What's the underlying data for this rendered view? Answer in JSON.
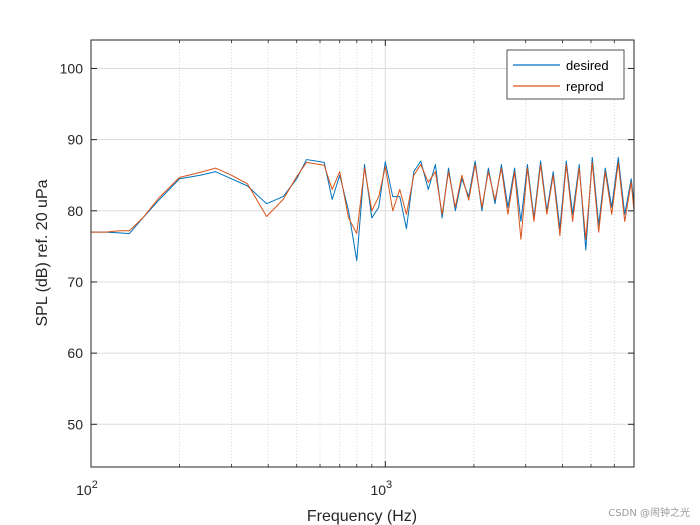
{
  "chart_data": {
    "type": "line",
    "xscale": "log",
    "xlim": [
      100,
      7000
    ],
    "ylim": [
      44,
      104
    ],
    "xlabel": "Frequency (Hz)",
    "ylabel": "SPL (dB) ref. 20 uPa",
    "y_ticks": [
      50,
      60,
      70,
      80,
      90,
      100
    ],
    "x_ticks": [
      {
        "value": 100,
        "base": "10",
        "exp": "2"
      },
      {
        "value": 1000,
        "base": "10",
        "exp": "3"
      }
    ],
    "grid": true,
    "legend_position": "top-right",
    "series": [
      {
        "name": "desired",
        "color": "#0072BD",
        "x": [
          100,
          112,
          125,
          135,
          150,
          170,
          200,
          235,
          265,
          300,
          340,
          395,
          450,
          500,
          540,
          580,
          620,
          660,
          700,
          750,
          800,
          850,
          900,
          950,
          1000,
          1060,
          1120,
          1180,
          1250,
          1320,
          1400,
          1480,
          1560,
          1640,
          1730,
          1820,
          1920,
          2020,
          2130,
          2240,
          2360,
          2480,
          2610,
          2750,
          2890,
          3040,
          3200,
          3370,
          3540,
          3720,
          3920,
          4120,
          4330,
          4560,
          4800,
          5050,
          5310,
          5590,
          5880,
          6190,
          6510,
          6850,
          7000
        ],
        "y": [
          77.0,
          77.0,
          76.9,
          76.8,
          79.0,
          81.5,
          84.5,
          85.0,
          85.5,
          84.5,
          83.5,
          81.0,
          82.0,
          84.5,
          87.2,
          87.0,
          86.8,
          81.6,
          85.0,
          80.0,
          73.0,
          86.5,
          79.0,
          80.5,
          86.9,
          82.0,
          82.0,
          77.5,
          85.5,
          87.0,
          83.0,
          86.5,
          79.0,
          86.0,
          80.0,
          84.5,
          82.0,
          87.0,
          80.0,
          86.0,
          81.0,
          86.5,
          80.5,
          86.0,
          78.5,
          86.5,
          79.0,
          87.0,
          80.0,
          85.5,
          77.5,
          87.0,
          79.5,
          86.5,
          74.5,
          87.5,
          78.0,
          86.0,
          80.5,
          87.5,
          79.5,
          84.5,
          81.0
        ]
      },
      {
        "name": "reprod",
        "color": "#D95319",
        "x": [
          100,
          112,
          125,
          135,
          150,
          170,
          200,
          235,
          265,
          300,
          340,
          395,
          450,
          500,
          540,
          580,
          620,
          660,
          700,
          750,
          800,
          850,
          900,
          950,
          1000,
          1060,
          1120,
          1180,
          1250,
          1320,
          1400,
          1480,
          1560,
          1640,
          1730,
          1820,
          1920,
          2020,
          2130,
          2240,
          2360,
          2480,
          2610,
          2750,
          2890,
          3040,
          3200,
          3370,
          3540,
          3720,
          3920,
          4120,
          4330,
          4560,
          4800,
          5050,
          5310,
          5590,
          5880,
          6190,
          6510,
          6850,
          7000
        ],
        "y": [
          77.0,
          77.0,
          77.2,
          77.2,
          79.0,
          81.8,
          84.7,
          85.4,
          86.0,
          85.0,
          83.8,
          79.2,
          81.6,
          84.8,
          86.8,
          86.6,
          86.4,
          83.0,
          85.5,
          79.0,
          76.8,
          86.0,
          80.0,
          82.0,
          86.2,
          80.0,
          83.0,
          79.5,
          85.0,
          86.5,
          84.0,
          85.5,
          79.5,
          85.5,
          80.5,
          85.0,
          81.5,
          86.5,
          80.5,
          85.5,
          81.5,
          86.0,
          79.5,
          85.5,
          76.0,
          86.0,
          78.5,
          86.5,
          79.5,
          85.0,
          76.5,
          86.5,
          78.5,
          86.0,
          76.0,
          86.8,
          77.0,
          85.5,
          79.5,
          86.8,
          78.5,
          84.0,
          80.0
        ]
      }
    ]
  },
  "watermark": "CSDN @闹钟之光"
}
